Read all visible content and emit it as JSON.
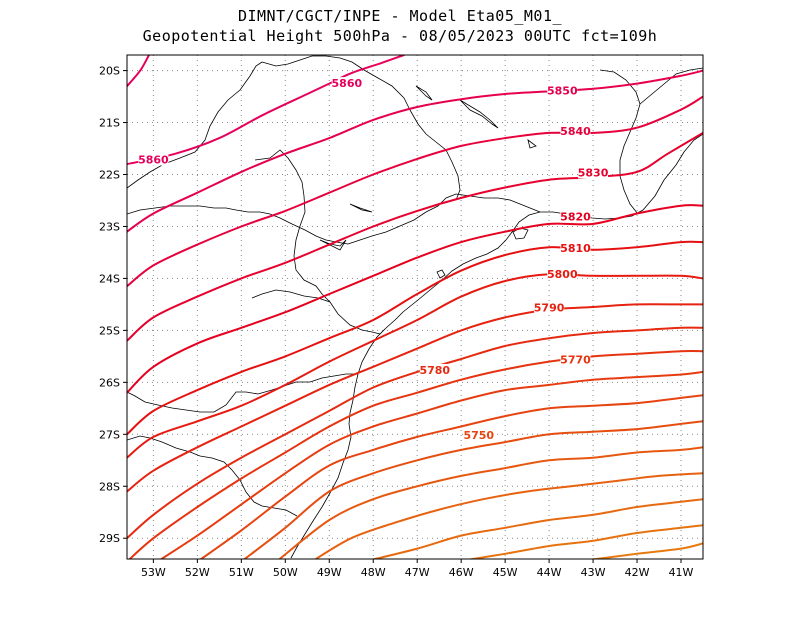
{
  "header": {
    "line1": "DIMNT/CGCT/INPE -  Model Eta05_M01_",
    "line2": "Geopotential Height 500hPa -  08/05/2023 00UTC fct=109h"
  },
  "map": {
    "lon_range": [
      -53.6,
      -40.5
    ],
    "lat_range": [
      -29.4,
      -19.7
    ],
    "lon_ticks": [
      {
        "v": -53,
        "label": "53W"
      },
      {
        "v": -52,
        "label": "52W"
      },
      {
        "v": -51,
        "label": "51W"
      },
      {
        "v": -50,
        "label": "50W"
      },
      {
        "v": -49,
        "label": "49W"
      },
      {
        "v": -48,
        "label": "48W"
      },
      {
        "v": -47,
        "label": "47W"
      },
      {
        "v": -46,
        "label": "46W"
      },
      {
        "v": -45,
        "label": "45W"
      },
      {
        "v": -44,
        "label": "44W"
      },
      {
        "v": -43,
        "label": "43W"
      },
      {
        "v": -42,
        "label": "42W"
      },
      {
        "v": -41,
        "label": "41W"
      }
    ],
    "lat_ticks": [
      {
        "v": -20,
        "label": "20S"
      },
      {
        "v": -21,
        "label": "21S"
      },
      {
        "v": -22,
        "label": "22S"
      },
      {
        "v": -23,
        "label": "23S"
      },
      {
        "v": -24,
        "label": "24S"
      },
      {
        "v": -25,
        "label": "25S"
      },
      {
        "v": -26,
        "label": "26S"
      },
      {
        "v": -27,
        "label": "27S"
      },
      {
        "v": -28,
        "label": "28S"
      },
      {
        "v": -29,
        "label": "29S"
      }
    ],
    "contours": [
      {
        "value": 5860,
        "color": "#e6005c",
        "label": "5860",
        "points": [
          [
            -53.6,
            -20.3
          ],
          [
            -53.3,
            -20.0
          ],
          [
            -53.1,
            -19.7
          ]
        ]
      },
      {
        "value": 5860,
        "color": "#e6005c",
        "label": "5860",
        "label_at": [
          -53.0,
          -21.75
        ],
        "points": [
          [
            -53.6,
            -21.8
          ],
          [
            -52.5,
            -21.6
          ],
          [
            -51.5,
            -21.3
          ],
          [
            -50.5,
            -20.85
          ],
          [
            -49.5,
            -20.45
          ],
          [
            -49.0,
            -20.25
          ],
          [
            -48.5,
            -20.05
          ],
          [
            -47.8,
            -19.85
          ],
          [
            -47.3,
            -19.7
          ]
        ]
      },
      {
        "value": 5860,
        "color": "#e6005c",
        "label": "5860",
        "label_at": [
          -48.6,
          -20.28
        ],
        "points": []
      },
      {
        "value": 5850,
        "color": "#e6004c",
        "label": "5850",
        "label_at": [
          -43.7,
          -20.42
        ],
        "points": [
          [
            -53.6,
            -23.1
          ],
          [
            -53.0,
            -22.75
          ],
          [
            -52.0,
            -22.35
          ],
          [
            -51.0,
            -21.95
          ],
          [
            -50.0,
            -21.6
          ],
          [
            -49.0,
            -21.3
          ],
          [
            -48.0,
            -20.95
          ],
          [
            -47.0,
            -20.7
          ],
          [
            -46.0,
            -20.55
          ],
          [
            -45.0,
            -20.45
          ],
          [
            -44.0,
            -20.4
          ],
          [
            -43.0,
            -20.35
          ],
          [
            -42.0,
            -20.25
          ],
          [
            -41.0,
            -20.1
          ],
          [
            -40.5,
            -20.0
          ]
        ]
      },
      {
        "value": 5840,
        "color": "#e6003c",
        "label": "5840",
        "label_at": [
          -43.4,
          -21.2
        ],
        "points": [
          [
            -53.6,
            -24.15
          ],
          [
            -53.0,
            -23.75
          ],
          [
            -52.0,
            -23.35
          ],
          [
            -51.0,
            -23.0
          ],
          [
            -50.0,
            -22.7
          ],
          [
            -49.0,
            -22.35
          ],
          [
            -48.0,
            -22.0
          ],
          [
            -47.0,
            -21.7
          ],
          [
            -46.0,
            -21.45
          ],
          [
            -45.0,
            -21.3
          ],
          [
            -44.0,
            -21.2
          ],
          [
            -43.0,
            -21.2
          ],
          [
            -42.0,
            -21.1
          ],
          [
            -41.0,
            -20.75
          ],
          [
            -40.5,
            -20.5
          ]
        ]
      },
      {
        "value": 5830,
        "color": "#e6002e",
        "label": "5830",
        "label_at": [
          -43.0,
          -22.0
        ],
        "points": [
          [
            -53.6,
            -25.2
          ],
          [
            -53.0,
            -24.75
          ],
          [
            -52.0,
            -24.35
          ],
          [
            -51.0,
            -24.0
          ],
          [
            -50.0,
            -23.7
          ],
          [
            -49.0,
            -23.35
          ],
          [
            -48.0,
            -23.0
          ],
          [
            -47.0,
            -22.7
          ],
          [
            -46.0,
            -22.45
          ],
          [
            -45.0,
            -22.25
          ],
          [
            -44.0,
            -22.1
          ],
          [
            -43.0,
            -22.05
          ],
          [
            -42.0,
            -21.95
          ],
          [
            -41.3,
            -21.6
          ],
          [
            -40.5,
            -21.2
          ]
        ]
      },
      {
        "value": 5820,
        "color": "#e60020",
        "label": "5820",
        "label_at": [
          -43.4,
          -22.85
        ],
        "points": [
          [
            -53.6,
            -26.2
          ],
          [
            -53.0,
            -25.7
          ],
          [
            -52.0,
            -25.25
          ],
          [
            -51.0,
            -24.95
          ],
          [
            -50.0,
            -24.65
          ],
          [
            -49.0,
            -24.3
          ],
          [
            -48.0,
            -23.95
          ],
          [
            -47.0,
            -23.6
          ],
          [
            -46.0,
            -23.3
          ],
          [
            -45.0,
            -23.1
          ],
          [
            -44.0,
            -22.95
          ],
          [
            -43.0,
            -22.95
          ],
          [
            -42.0,
            -22.75
          ],
          [
            -41.0,
            -22.6
          ],
          [
            -40.5,
            -22.6
          ]
        ]
      },
      {
        "value": 5810,
        "color": "#e61010",
        "label": "5810",
        "label_at": [
          -43.4,
          -23.45
        ],
        "points": [
          [
            -53.6,
            -27.0
          ],
          [
            -53.0,
            -26.55
          ],
          [
            -52.0,
            -26.15
          ],
          [
            -51.0,
            -25.8
          ],
          [
            -50.0,
            -25.5
          ],
          [
            -49.0,
            -25.15
          ],
          [
            -48.0,
            -24.8
          ],
          [
            -47.0,
            -24.3
          ],
          [
            -46.0,
            -23.85
          ],
          [
            -45.0,
            -23.55
          ],
          [
            -44.0,
            -23.4
          ],
          [
            -43.0,
            -23.45
          ],
          [
            -42.0,
            -23.4
          ],
          [
            -41.0,
            -23.3
          ],
          [
            -40.5,
            -23.3
          ]
        ]
      },
      {
        "value": 5800,
        "color": "#e61a10",
        "label": "5800",
        "label_at": [
          -43.7,
          -23.95
        ],
        "points": [
          [
            -53.6,
            -27.45
          ],
          [
            -53.0,
            -27.05
          ],
          [
            -52.0,
            -26.75
          ],
          [
            -51.0,
            -26.45
          ],
          [
            -50.0,
            -26.05
          ],
          [
            -49.0,
            -25.6
          ],
          [
            -48.0,
            -25.2
          ],
          [
            -47.0,
            -24.8
          ],
          [
            -46.0,
            -24.35
          ],
          [
            -45.0,
            -24.05
          ],
          [
            -44.0,
            -23.92
          ],
          [
            -43.0,
            -23.95
          ],
          [
            -42.0,
            -23.95
          ],
          [
            -41.0,
            -23.95
          ],
          [
            -40.5,
            -24.0
          ]
        ]
      },
      {
        "value": 5790,
        "color": "#e62210",
        "label": "5790",
        "label_at": [
          -44.0,
          -24.6
        ],
        "points": [
          [
            -53.6,
            -28.1
          ],
          [
            -53.0,
            -27.7
          ],
          [
            -52.0,
            -27.25
          ],
          [
            -51.0,
            -26.85
          ],
          [
            -50.0,
            -26.45
          ],
          [
            -49.0,
            -26.05
          ],
          [
            -48.0,
            -25.7
          ],
          [
            -47.0,
            -25.35
          ],
          [
            -46.0,
            -25.0
          ],
          [
            -45.0,
            -24.75
          ],
          [
            -44.0,
            -24.6
          ],
          [
            -43.0,
            -24.55
          ],
          [
            -42.0,
            -24.5
          ],
          [
            -41.0,
            -24.5
          ],
          [
            -40.5,
            -24.5
          ]
        ]
      },
      {
        "value": 5780,
        "color": "#e62a10",
        "label": "5780",
        "label_at": [
          -46.6,
          -25.8
        ],
        "points": [
          [
            -53.6,
            -29.0
          ],
          [
            -53.0,
            -28.55
          ],
          [
            -52.0,
            -27.95
          ],
          [
            -51.0,
            -27.45
          ],
          [
            -50.0,
            -27.0
          ],
          [
            -49.0,
            -26.55
          ],
          [
            -48.0,
            -26.1
          ],
          [
            -47.0,
            -25.8
          ],
          [
            -46.0,
            -25.55
          ],
          [
            -45.0,
            -25.3
          ],
          [
            -44.0,
            -25.15
          ],
          [
            -43.0,
            -25.05
          ],
          [
            -42.0,
            -25.0
          ],
          [
            -41.0,
            -24.95
          ],
          [
            -40.5,
            -24.95
          ]
        ]
      },
      {
        "value": 5770,
        "color": "#e63310",
        "label": "5770",
        "label_at": [
          -43.4,
          -25.6
        ],
        "points": [
          [
            -53.6,
            -29.45
          ],
          [
            -53.0,
            -29.0
          ],
          [
            -52.0,
            -28.4
          ],
          [
            -51.0,
            -27.85
          ],
          [
            -50.0,
            -27.35
          ],
          [
            -49.0,
            -26.85
          ],
          [
            -48.0,
            -26.45
          ],
          [
            -47.0,
            -26.2
          ],
          [
            -46.0,
            -25.95
          ],
          [
            -45.0,
            -25.75
          ],
          [
            -44.0,
            -25.6
          ],
          [
            -43.0,
            -25.5
          ],
          [
            -42.0,
            -25.45
          ],
          [
            -41.0,
            -25.4
          ],
          [
            -40.5,
            -25.4
          ]
        ]
      },
      {
        "value": 5760,
        "color": "#e63c10",
        "label": "",
        "points": [
          [
            -53.0,
            -29.5
          ],
          [
            -52.0,
            -28.95
          ],
          [
            -51.0,
            -28.35
          ],
          [
            -50.0,
            -27.75
          ],
          [
            -49.0,
            -27.2
          ],
          [
            -48.0,
            -26.85
          ],
          [
            -47.0,
            -26.6
          ],
          [
            -46.0,
            -26.35
          ],
          [
            -45.0,
            -26.15
          ],
          [
            -44.0,
            -26.05
          ],
          [
            -43.0,
            -25.95
          ],
          [
            -42.0,
            -25.9
          ],
          [
            -41.0,
            -25.85
          ],
          [
            -40.5,
            -25.8
          ]
        ]
      },
      {
        "value": 5750,
        "color": "#e64410",
        "label": "5750",
        "label_at": [
          -45.6,
          -27.05
        ],
        "points": [
          [
            -52.0,
            -29.45
          ],
          [
            -51.0,
            -28.85
          ],
          [
            -50.0,
            -28.2
          ],
          [
            -49.0,
            -27.6
          ],
          [
            -48.0,
            -27.3
          ],
          [
            -47.0,
            -27.05
          ],
          [
            -46.0,
            -26.85
          ],
          [
            -45.0,
            -26.65
          ],
          [
            -44.0,
            -26.5
          ],
          [
            -43.0,
            -26.45
          ],
          [
            -42.0,
            -26.4
          ],
          [
            -41.0,
            -26.3
          ],
          [
            -40.5,
            -26.25
          ]
        ]
      },
      {
        "value": 5740,
        "color": "#e64e10",
        "label": "",
        "points": [
          [
            -51.0,
            -29.45
          ],
          [
            -50.0,
            -28.8
          ],
          [
            -49.0,
            -28.1
          ],
          [
            -48.0,
            -27.75
          ],
          [
            -47.0,
            -27.5
          ],
          [
            -46.0,
            -27.3
          ],
          [
            -45.0,
            -27.15
          ],
          [
            -44.0,
            -27.0
          ],
          [
            -43.0,
            -26.95
          ],
          [
            -42.0,
            -26.9
          ],
          [
            -41.0,
            -26.8
          ],
          [
            -40.5,
            -26.75
          ]
        ]
      },
      {
        "value": 5730,
        "color": "#e65810",
        "label": "",
        "points": [
          [
            -50.2,
            -29.45
          ],
          [
            -49.0,
            -28.65
          ],
          [
            -48.0,
            -28.25
          ],
          [
            -47.0,
            -28.0
          ],
          [
            -46.0,
            -27.8
          ],
          [
            -45.0,
            -27.65
          ],
          [
            -44.0,
            -27.5
          ],
          [
            -43.0,
            -27.45
          ],
          [
            -42.0,
            -27.35
          ],
          [
            -41.0,
            -27.3
          ],
          [
            -40.5,
            -27.25
          ]
        ]
      },
      {
        "value": 5720,
        "color": "#e66210",
        "label": "",
        "points": [
          [
            -49.4,
            -29.45
          ],
          [
            -48.5,
            -29.0
          ],
          [
            -47.5,
            -28.7
          ],
          [
            -46.5,
            -28.45
          ],
          [
            -45.5,
            -28.25
          ],
          [
            -44.5,
            -28.1
          ],
          [
            -43.5,
            -28.0
          ],
          [
            -42.5,
            -27.9
          ],
          [
            -41.5,
            -27.8
          ],
          [
            -40.5,
            -27.75
          ]
        ]
      },
      {
        "value": 5710,
        "color": "#e66a10",
        "label": "",
        "points": [
          [
            -48.2,
            -29.45
          ],
          [
            -47.0,
            -29.2
          ],
          [
            -46.0,
            -28.95
          ],
          [
            -45.0,
            -28.8
          ],
          [
            -44.0,
            -28.65
          ],
          [
            -43.0,
            -28.55
          ],
          [
            -42.0,
            -28.4
          ],
          [
            -41.0,
            -28.3
          ],
          [
            -40.5,
            -28.25
          ]
        ]
      },
      {
        "value": 5700,
        "color": "#e67210",
        "label": "",
        "points": [
          [
            -46.1,
            -29.45
          ],
          [
            -45.0,
            -29.3
          ],
          [
            -44.0,
            -29.15
          ],
          [
            -43.0,
            -29.05
          ],
          [
            -42.0,
            -28.9
          ],
          [
            -41.0,
            -28.8
          ],
          [
            -40.5,
            -28.75
          ]
        ]
      },
      {
        "value": 5690,
        "color": "#e67a10",
        "label": "",
        "points": [
          [
            -43.4,
            -29.45
          ],
          [
            -42.0,
            -29.3
          ],
          [
            -41.0,
            -29.2
          ],
          [
            -40.5,
            -29.1
          ]
        ]
      }
    ]
  }
}
